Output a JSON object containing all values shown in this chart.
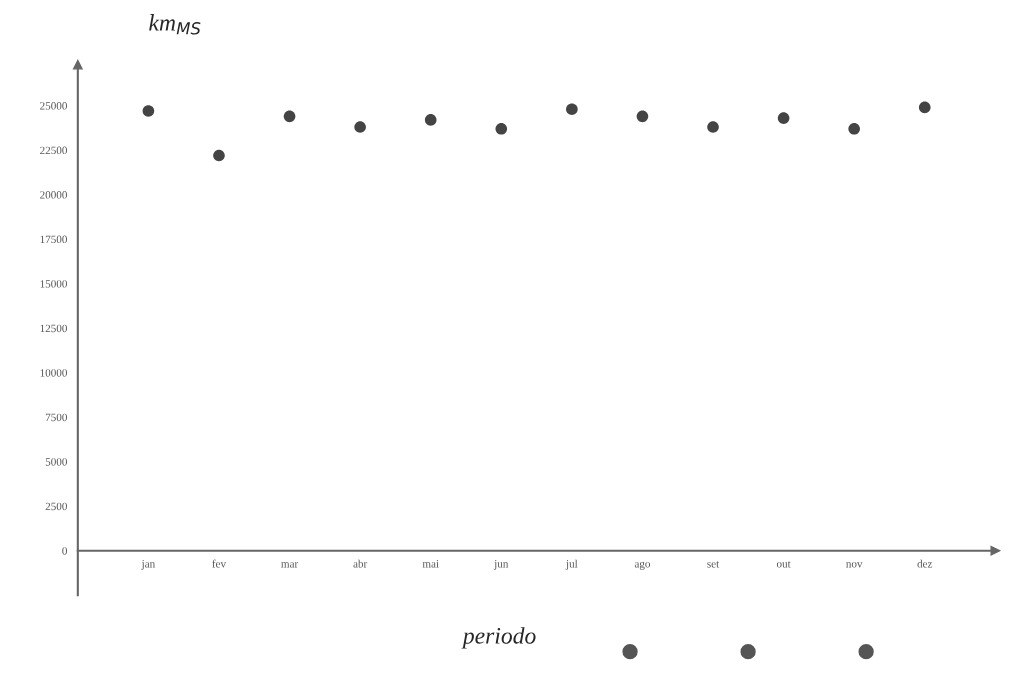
{
  "chart_data": {
    "type": "scatter",
    "xlabel": "periodo",
    "ylabel": "km$_{MS}$",
    "categories": [
      "jan",
      "fev",
      "mar",
      "abr",
      "mai",
      "jun",
      "jul",
      "ago",
      "set",
      "out",
      "nov",
      "dez"
    ],
    "series": [
      {
        "color": "#444444",
        "values": [
          24700,
          22200,
          24400,
          23800,
          24200,
          23700,
          24800,
          24400,
          23800,
          24300,
          23700,
          24900
        ]
      }
    ],
    "ylim": [
      -2500,
      27300
    ],
    "yticks": [
      0,
      2500,
      5000,
      7500,
      10000,
      12500,
      15000,
      17500,
      20000,
      22500,
      25000
    ],
    "grid": false,
    "marker": "circle",
    "legend": false
  }
}
